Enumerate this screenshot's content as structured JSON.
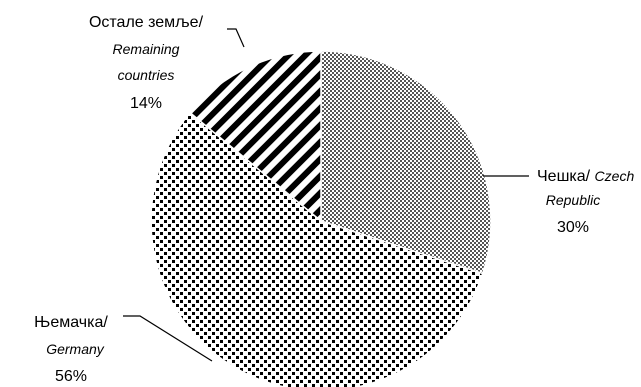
{
  "chart_data": {
    "type": "pie",
    "slices": [
      {
        "label_sr": "Чешка/",
        "label_en_line1": "Czech",
        "label_en_line2": "Republic",
        "value": 30,
        "value_label": "30%",
        "pattern": "checker"
      },
      {
        "label_sr": "Њемачка/",
        "label_en_line1": "Germany",
        "label_en_line2": "",
        "value": 56,
        "value_label": "56%",
        "pattern": "dots"
      },
      {
        "label_sr": "Остале земље/",
        "label_en_line1": "Remaining",
        "label_en_line2": "countries",
        "value": 14,
        "value_label": "14%",
        "pattern": "stripes"
      }
    ],
    "start_angle_deg": 0,
    "direction": "clockwise",
    "colors": {
      "ink": "#000000",
      "paper": "#ffffff",
      "checker": "#7a7a7a"
    }
  }
}
